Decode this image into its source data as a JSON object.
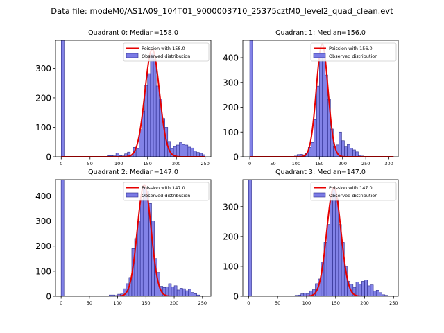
{
  "figure": {
    "suptitle": "Data file: modeM0/AS1A09_104T01_9000003710_25375cztM0_level2_quad_clean.evt"
  },
  "colors": {
    "bar_fill": "#7b7be6",
    "bar_edge": "#2a2a8a",
    "poisson_line": "#e60000"
  },
  "chart_data": [
    {
      "type": "bar",
      "title": "Quadrant 0: Median=158.0",
      "xlim": [
        -10,
        260
      ],
      "ylim": [
        0,
        395
      ],
      "xticks": [
        0,
        50,
        100,
        150,
        200,
        250
      ],
      "yticks": [
        0,
        100,
        200,
        300
      ],
      "legend": [
        "Poission with 158.0",
        "Observed distribution"
      ],
      "legend_position": "top-right",
      "bin_width": 5,
      "bars": [
        {
          "x": 0,
          "y": 395
        },
        {
          "x": 80,
          "y": 4
        },
        {
          "x": 85,
          "y": 4
        },
        {
          "x": 90,
          "y": 3
        },
        {
          "x": 95,
          "y": 13
        },
        {
          "x": 100,
          "y": 4
        },
        {
          "x": 105,
          "y": 3
        },
        {
          "x": 110,
          "y": 10
        },
        {
          "x": 115,
          "y": 16
        },
        {
          "x": 120,
          "y": 6
        },
        {
          "x": 125,
          "y": 32
        },
        {
          "x": 130,
          "y": 28
        },
        {
          "x": 135,
          "y": 92
        },
        {
          "x": 140,
          "y": 155
        },
        {
          "x": 145,
          "y": 242
        },
        {
          "x": 150,
          "y": 282
        },
        {
          "x": 155,
          "y": 348
        },
        {
          "x": 160,
          "y": 330
        },
        {
          "x": 165,
          "y": 240
        },
        {
          "x": 170,
          "y": 196
        },
        {
          "x": 175,
          "y": 130
        },
        {
          "x": 180,
          "y": 100
        },
        {
          "x": 185,
          "y": 52
        },
        {
          "x": 190,
          "y": 28
        },
        {
          "x": 195,
          "y": 35
        },
        {
          "x": 200,
          "y": 40
        },
        {
          "x": 205,
          "y": 48
        },
        {
          "x": 210,
          "y": 42
        },
        {
          "x": 215,
          "y": 40
        },
        {
          "x": 220,
          "y": 33
        },
        {
          "x": 225,
          "y": 30
        },
        {
          "x": 230,
          "y": 20
        },
        {
          "x": 235,
          "y": 15
        },
        {
          "x": 240,
          "y": 12
        },
        {
          "x": 245,
          "y": 7
        }
      ],
      "poisson": {
        "lambda": 158.0,
        "peak": 365,
        "x_start": 0,
        "x_end": 250
      }
    },
    {
      "type": "bar",
      "title": "Quadrant 1: Median=156.0",
      "xlim": [
        -15,
        320
      ],
      "ylim": [
        0,
        470
      ],
      "xticks": [
        0,
        50,
        100,
        150,
        200,
        250,
        300
      ],
      "yticks": [
        0,
        100,
        200,
        300,
        400
      ],
      "legend": [
        "Poission with 156.0",
        "Observed distribution"
      ],
      "legend_position": "top-right",
      "bin_width": 6,
      "bars": [
        {
          "x": 0,
          "y": 470
        },
        {
          "x": 96,
          "y": 3
        },
        {
          "x": 102,
          "y": 9
        },
        {
          "x": 108,
          "y": 10
        },
        {
          "x": 114,
          "y": 8
        },
        {
          "x": 120,
          "y": 15
        },
        {
          "x": 126,
          "y": 38
        },
        {
          "x": 132,
          "y": 58
        },
        {
          "x": 138,
          "y": 150
        },
        {
          "x": 144,
          "y": 285
        },
        {
          "x": 150,
          "y": 410
        },
        {
          "x": 156,
          "y": 410
        },
        {
          "x": 162,
          "y": 330
        },
        {
          "x": 168,
          "y": 232
        },
        {
          "x": 174,
          "y": 112
        },
        {
          "x": 180,
          "y": 42
        },
        {
          "x": 186,
          "y": 48
        },
        {
          "x": 192,
          "y": 100
        },
        {
          "x": 198,
          "y": 65
        },
        {
          "x": 204,
          "y": 40
        },
        {
          "x": 210,
          "y": 50
        },
        {
          "x": 216,
          "y": 35
        },
        {
          "x": 222,
          "y": 28
        },
        {
          "x": 228,
          "y": 20
        },
        {
          "x": 234,
          "y": 6
        },
        {
          "x": 240,
          "y": 3
        }
      ],
      "poisson": {
        "lambda": 156.0,
        "peak": 455,
        "x_start": 0,
        "x_end": 310
      }
    },
    {
      "type": "bar",
      "title": "Quadrant 2: Median=147.0",
      "xlim": [
        -10,
        265
      ],
      "ylim": [
        0,
        465
      ],
      "xticks": [
        0,
        50,
        100,
        150,
        200,
        250
      ],
      "yticks": [
        0,
        100,
        200,
        300,
        400
      ],
      "legend": [
        "Poission with 147.0",
        "Observed distribution"
      ],
      "legend_position": "top-right",
      "bin_width": 5,
      "bars": [
        {
          "x": 0,
          "y": 465
        },
        {
          "x": 85,
          "y": 5
        },
        {
          "x": 90,
          "y": 5
        },
        {
          "x": 95,
          "y": 3
        },
        {
          "x": 100,
          "y": 8
        },
        {
          "x": 105,
          "y": 9
        },
        {
          "x": 110,
          "y": 30
        },
        {
          "x": 115,
          "y": 50
        },
        {
          "x": 120,
          "y": 75
        },
        {
          "x": 125,
          "y": 190
        },
        {
          "x": 130,
          "y": 230
        },
        {
          "x": 135,
          "y": 300
        },
        {
          "x": 140,
          "y": 385
        },
        {
          "x": 145,
          "y": 445
        },
        {
          "x": 150,
          "y": 420
        },
        {
          "x": 155,
          "y": 370
        },
        {
          "x": 160,
          "y": 300
        },
        {
          "x": 165,
          "y": 150
        },
        {
          "x": 170,
          "y": 95
        },
        {
          "x": 175,
          "y": 40
        },
        {
          "x": 180,
          "y": 35
        },
        {
          "x": 185,
          "y": 38
        },
        {
          "x": 190,
          "y": 50
        },
        {
          "x": 195,
          "y": 38
        },
        {
          "x": 200,
          "y": 42
        },
        {
          "x": 205,
          "y": 25
        },
        {
          "x": 210,
          "y": 32
        },
        {
          "x": 215,
          "y": 30
        },
        {
          "x": 220,
          "y": 22
        },
        {
          "x": 225,
          "y": 28
        },
        {
          "x": 230,
          "y": 15
        },
        {
          "x": 235,
          "y": 10
        },
        {
          "x": 240,
          "y": 5
        }
      ],
      "poisson": {
        "lambda": 147.0,
        "peak": 445,
        "x_start": 0,
        "x_end": 255
      }
    },
    {
      "type": "bar",
      "title": "Quadrant 3: Median=147.0",
      "xlim": [
        -10,
        258
      ],
      "ylim": [
        0,
        390
      ],
      "xticks": [
        0,
        50,
        100,
        150,
        200,
        250
      ],
      "yticks": [
        0,
        100,
        200,
        300
      ],
      "legend": [
        "Poission with 147.0",
        "Observed distribution"
      ],
      "legend_position": "top-right",
      "bin_width": 5,
      "bars": [
        {
          "x": 0,
          "y": 390
        },
        {
          "x": 80,
          "y": 3
        },
        {
          "x": 85,
          "y": 4
        },
        {
          "x": 90,
          "y": 8
        },
        {
          "x": 95,
          "y": 10
        },
        {
          "x": 100,
          "y": 8
        },
        {
          "x": 105,
          "y": 18
        },
        {
          "x": 110,
          "y": 22
        },
        {
          "x": 115,
          "y": 42
        },
        {
          "x": 120,
          "y": 58
        },
        {
          "x": 125,
          "y": 115
        },
        {
          "x": 130,
          "y": 180
        },
        {
          "x": 135,
          "y": 240
        },
        {
          "x": 140,
          "y": 320
        },
        {
          "x": 145,
          "y": 365
        },
        {
          "x": 150,
          "y": 325
        },
        {
          "x": 155,
          "y": 240
        },
        {
          "x": 160,
          "y": 180
        },
        {
          "x": 165,
          "y": 100
        },
        {
          "x": 170,
          "y": 50
        },
        {
          "x": 175,
          "y": 40
        },
        {
          "x": 180,
          "y": 30
        },
        {
          "x": 185,
          "y": 48
        },
        {
          "x": 190,
          "y": 40
        },
        {
          "x": 195,
          "y": 50
        },
        {
          "x": 200,
          "y": 55
        },
        {
          "x": 205,
          "y": 35
        },
        {
          "x": 210,
          "y": 38
        },
        {
          "x": 215,
          "y": 18
        },
        {
          "x": 220,
          "y": 20
        },
        {
          "x": 225,
          "y": 12
        },
        {
          "x": 230,
          "y": 5
        },
        {
          "x": 235,
          "y": 3
        }
      ],
      "poisson": {
        "lambda": 147.0,
        "peak": 365,
        "x_start": 0,
        "x_end": 245
      }
    }
  ]
}
